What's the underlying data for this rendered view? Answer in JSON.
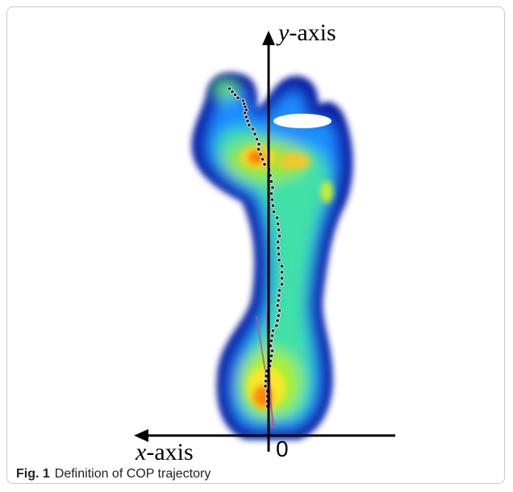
{
  "figure": {
    "y_axis_label": {
      "variable": "y",
      "rest": "-axis"
    },
    "x_axis_label": {
      "variable": "x",
      "rest": "-axis"
    },
    "origin_label": "0",
    "caption": {
      "label": "Fig. 1",
      "text": "Definition of COP trajectory"
    }
  }
}
